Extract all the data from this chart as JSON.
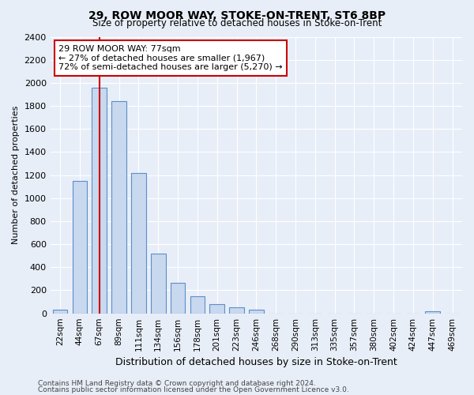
{
  "title": "29, ROW MOOR WAY, STOKE-ON-TRENT, ST6 8BP",
  "subtitle": "Size of property relative to detached houses in Stoke-on-Trent",
  "xlabel": "Distribution of detached houses by size in Stoke-on-Trent",
  "ylabel": "Number of detached properties",
  "categories": [
    "22sqm",
    "44sqm",
    "67sqm",
    "89sqm",
    "111sqm",
    "134sqm",
    "156sqm",
    "178sqm",
    "201sqm",
    "223sqm",
    "246sqm",
    "268sqm",
    "290sqm",
    "313sqm",
    "335sqm",
    "357sqm",
    "380sqm",
    "402sqm",
    "424sqm",
    "447sqm",
    "469sqm"
  ],
  "values": [
    30,
    1150,
    1960,
    1840,
    1220,
    520,
    265,
    150,
    80,
    50,
    35,
    0,
    0,
    0,
    0,
    0,
    0,
    0,
    0,
    20,
    0
  ],
  "bar_color": "#c8d8ee",
  "bar_edge_color": "#5b8fc9",
  "vline_x_index": 2,
  "vline_color": "#cc0000",
  "annotation_text": "29 ROW MOOR WAY: 77sqm\n← 27% of detached houses are smaller (1,967)\n72% of semi-detached houses are larger (5,270) →",
  "annotation_box_color": "#ffffff",
  "annotation_box_edge": "#cc0000",
  "ylim": [
    0,
    2400
  ],
  "yticks": [
    0,
    200,
    400,
    600,
    800,
    1000,
    1200,
    1400,
    1600,
    1800,
    2000,
    2200,
    2400
  ],
  "footer1": "Contains HM Land Registry data © Crown copyright and database right 2024.",
  "footer2": "Contains public sector information licensed under the Open Government Licence v3.0.",
  "bg_color": "#e8eef8",
  "grid_color": "#ffffff",
  "bar_width": 0.75
}
